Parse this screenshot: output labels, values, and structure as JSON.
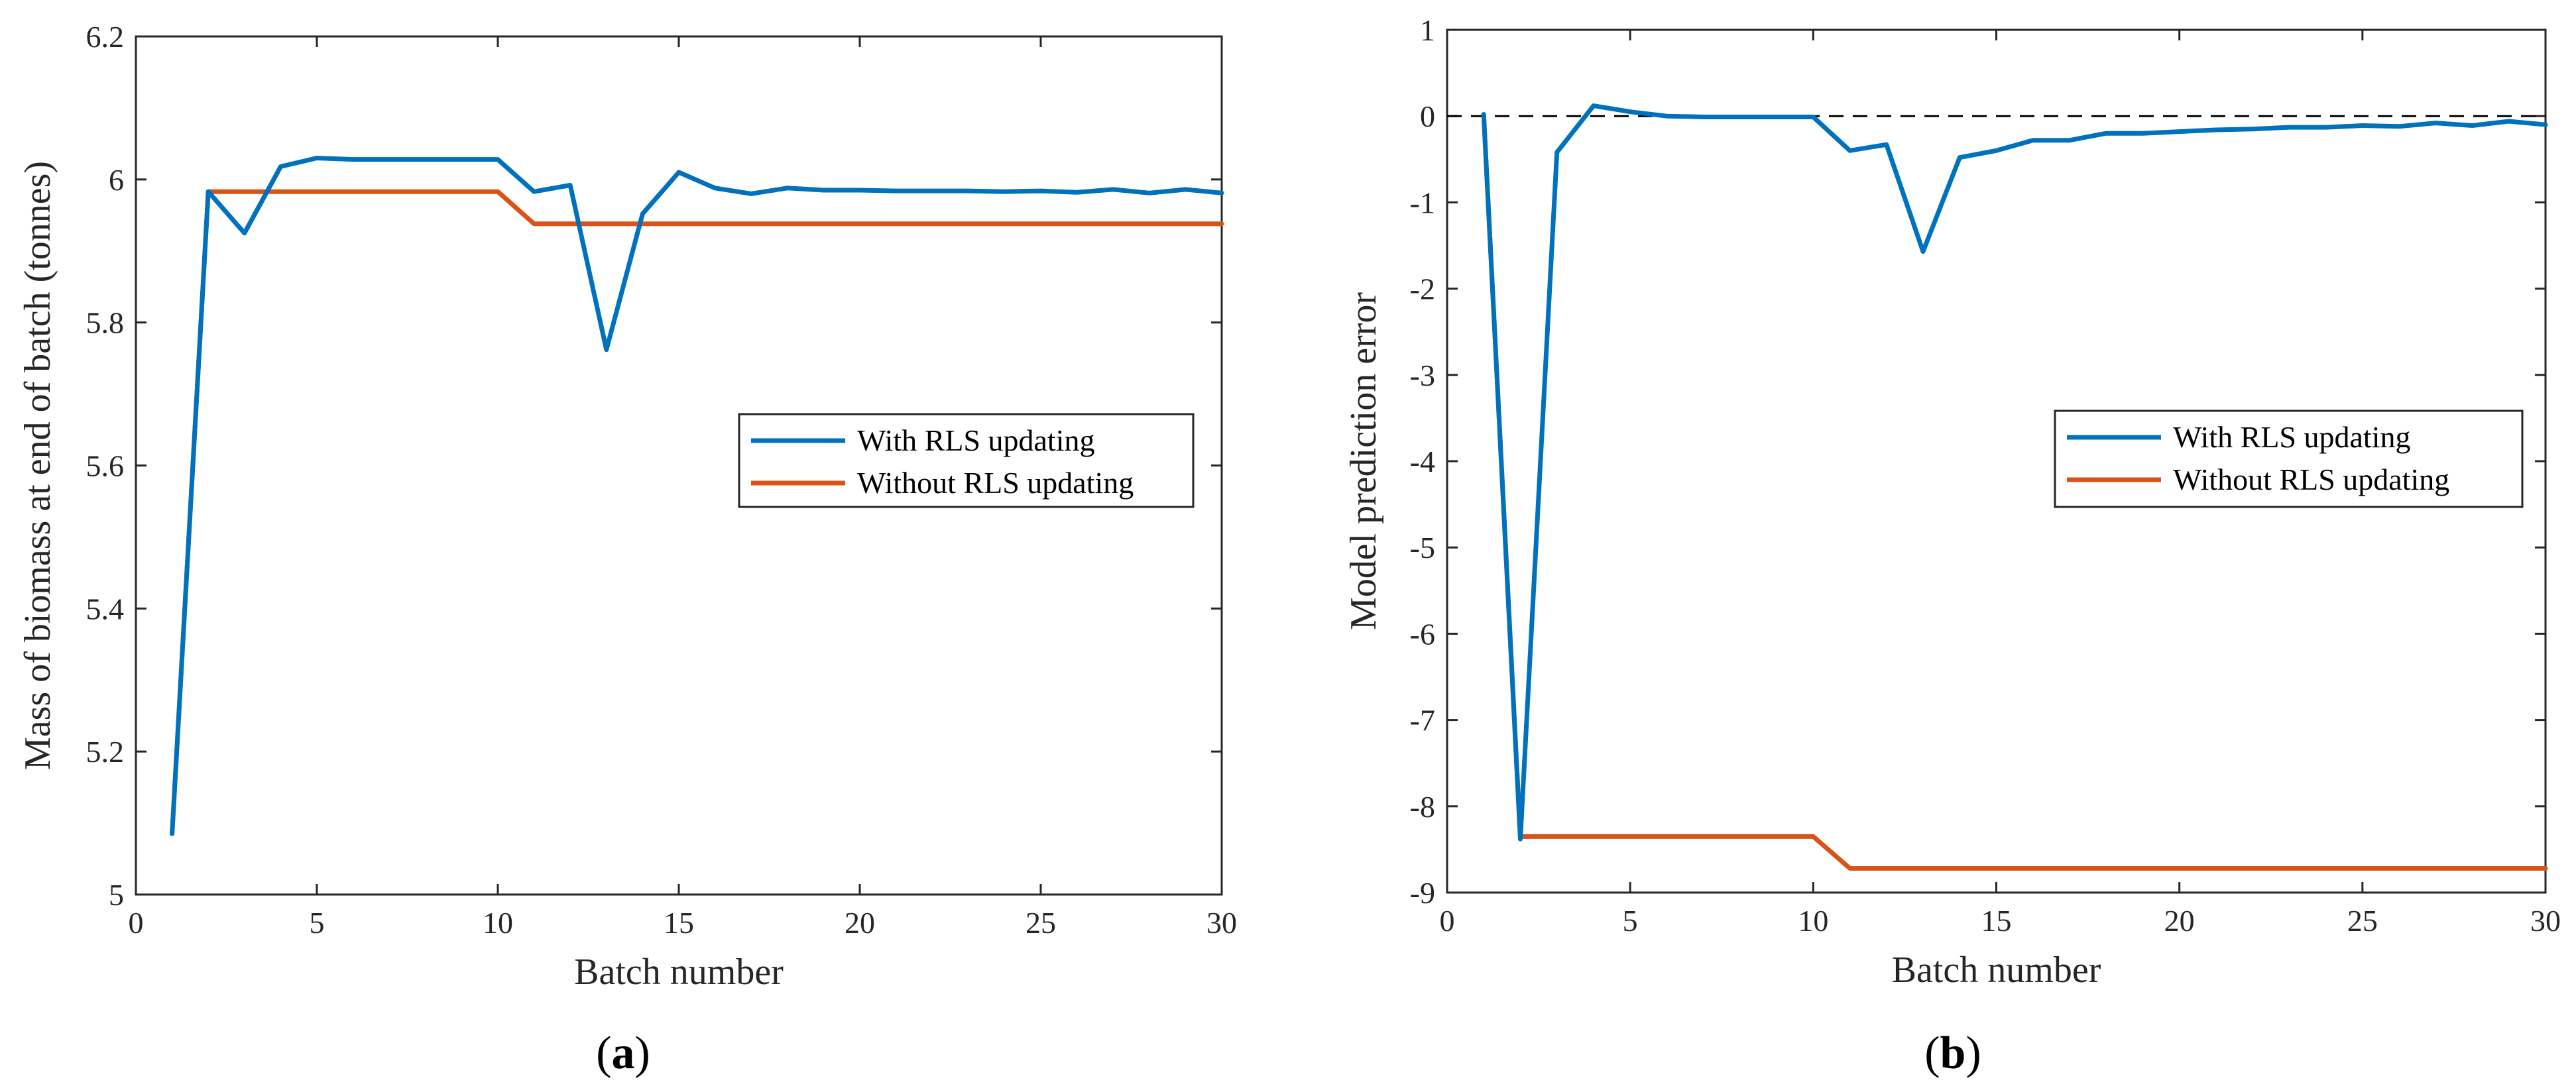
{
  "chart_data": [
    {
      "type": "line",
      "panel_label": "a",
      "xlabel": "Batch number",
      "ylabel": "Mass of biomass at end of batch (tonnes)",
      "xlim": [
        0,
        30
      ],
      "ylim": [
        5,
        6.2
      ],
      "xticks": [
        0,
        5,
        10,
        15,
        20,
        25,
        30
      ],
      "yticks": [
        5,
        5.2,
        5.4,
        5.6,
        5.8,
        6,
        6.2
      ],
      "ytick_labels": [
        "5",
        "5.2",
        "5.4",
        "5.6",
        "5.8",
        "6",
        "6.2"
      ],
      "legend_position": "center-right",
      "series": [
        {
          "name": "With RLS updating",
          "color": "#0072BD",
          "x": [
            1,
            2,
            3,
            4,
            5,
            6,
            7,
            8,
            9,
            10,
            11,
            12,
            13,
            14,
            15,
            16,
            17,
            18,
            19,
            20,
            21,
            22,
            23,
            24,
            25,
            26,
            27,
            28,
            29,
            30
          ],
          "values": [
            5.085,
            5.983,
            5.925,
            6.018,
            6.03,
            6.028,
            6.028,
            6.028,
            6.028,
            6.028,
            5.983,
            5.992,
            5.762,
            5.952,
            6.01,
            5.988,
            5.98,
            5.988,
            5.985,
            5.985,
            5.984,
            5.984,
            5.984,
            5.983,
            5.984,
            5.982,
            5.986,
            5.981,
            5.986,
            5.981
          ]
        },
        {
          "name": "Without RLS updating",
          "color": "#D95319",
          "x": [
            1,
            2,
            3,
            4,
            5,
            6,
            7,
            8,
            9,
            10,
            11,
            12,
            13,
            14,
            15,
            16,
            17,
            18,
            19,
            20,
            21,
            22,
            23,
            24,
            25,
            26,
            27,
            28,
            29,
            30
          ],
          "values": [
            5.085,
            5.983,
            5.983,
            5.983,
            5.983,
            5.983,
            5.983,
            5.983,
            5.983,
            5.983,
            5.938,
            5.938,
            5.938,
            5.938,
            5.938,
            5.938,
            5.938,
            5.938,
            5.938,
            5.938,
            5.938,
            5.938,
            5.938,
            5.938,
            5.938,
            5.938,
            5.938,
            5.938,
            5.938,
            5.938
          ]
        }
      ]
    },
    {
      "type": "line",
      "panel_label": "b",
      "xlabel": "Batch number",
      "ylabel": "Model prediction error",
      "xlim": [
        0,
        30
      ],
      "ylim": [
        -9,
        1
      ],
      "xticks": [
        0,
        5,
        10,
        15,
        20,
        25,
        30
      ],
      "yticks": [
        -9,
        -8,
        -7,
        -6,
        -5,
        -4,
        -3,
        -2,
        -1,
        0,
        1
      ],
      "ytick_labels": [
        "-9",
        "-8",
        "-7",
        "-6",
        "-5",
        "-4",
        "-3",
        "-2",
        "-1",
        "0",
        "1"
      ],
      "reference_line": 0,
      "legend_position": "center-right",
      "series": [
        {
          "name": "With RLS updating",
          "color": "#0072BD",
          "x": [
            1,
            2,
            3,
            4,
            5,
            6,
            7,
            8,
            9,
            10,
            11,
            12,
            13,
            14,
            15,
            16,
            17,
            18,
            19,
            20,
            21,
            22,
            23,
            24,
            25,
            26,
            27,
            28,
            29,
            30
          ],
          "values": [
            0.02,
            -8.38,
            -0.42,
            0.12,
            0.05,
            0.0,
            -0.01,
            -0.01,
            -0.01,
            -0.01,
            -0.4,
            -0.33,
            -1.57,
            -0.48,
            -0.4,
            -0.28,
            -0.28,
            -0.2,
            -0.2,
            -0.18,
            -0.16,
            -0.15,
            -0.13,
            -0.13,
            -0.11,
            -0.12,
            -0.08,
            -0.11,
            -0.06,
            -0.1
          ]
        },
        {
          "name": "Without RLS updating",
          "color": "#D95319",
          "x": [
            1,
            2,
            3,
            4,
            5,
            6,
            7,
            8,
            9,
            10,
            11,
            12,
            13,
            14,
            15,
            16,
            17,
            18,
            19,
            20,
            21,
            22,
            23,
            24,
            25,
            26,
            27,
            28,
            29,
            30
          ],
          "values": [
            0.02,
            -8.35,
            -8.35,
            -8.35,
            -8.35,
            -8.35,
            -8.35,
            -8.35,
            -8.35,
            -8.35,
            -8.72,
            -8.72,
            -8.72,
            -8.72,
            -8.72,
            -8.72,
            -8.72,
            -8.72,
            -8.72,
            -8.72,
            -8.72,
            -8.72,
            -8.72,
            -8.72,
            -8.72,
            -8.72,
            -8.72,
            -8.72,
            -8.72,
            -8.72
          ]
        }
      ]
    }
  ]
}
